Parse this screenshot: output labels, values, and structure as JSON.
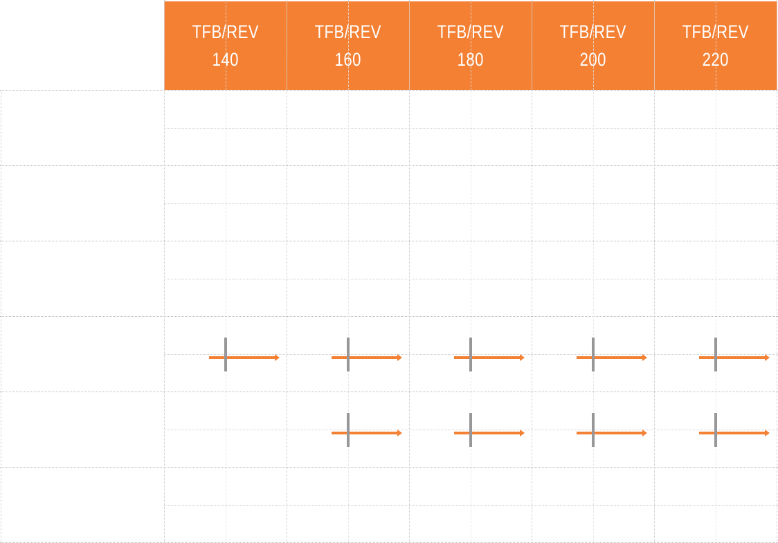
{
  "columns": [
    {
      "line1": "TFB/REV",
      "line2": "140"
    },
    {
      "line1": "TFB/REV",
      "line2": "160"
    },
    {
      "line1": "TFB/REV",
      "line2": "180"
    },
    {
      "line1": "TFB/REV",
      "line2": "200"
    },
    {
      "line1": "TFB/REV",
      "line2": "220"
    }
  ],
  "colors": {
    "header": "#f38033",
    "arrow": "#f38033",
    "marker": "#979799"
  },
  "row_count": 6,
  "markers": [
    {
      "row": 4,
      "columns": [
        1,
        2,
        3,
        4,
        5
      ]
    },
    {
      "row": 5,
      "columns": [
        2,
        3,
        4,
        5
      ]
    }
  ]
}
